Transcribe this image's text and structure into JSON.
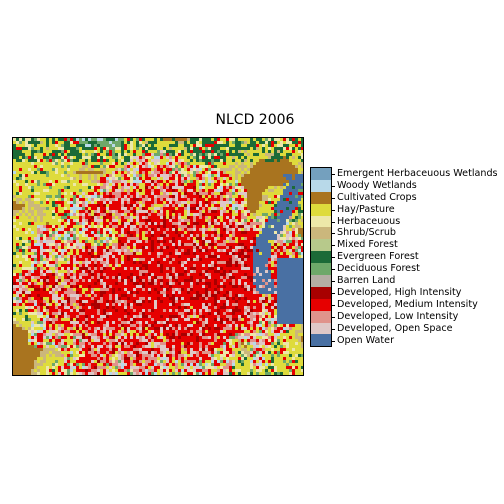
{
  "map": {
    "title": "NLCD 2006",
    "legend": [
      {
        "label": "Emergent Herbaceuous Wetlands",
        "color": "#74a0be"
      },
      {
        "label": "Woody Wetlands",
        "color": "#b8d9e9"
      },
      {
        "label": "Cultivated Crops",
        "color": "#a9741f"
      },
      {
        "label": "Hay/Pasture",
        "color": "#dedb3c"
      },
      {
        "label": "Herbaceuous",
        "color": "#ede8a9"
      },
      {
        "label": "Shrub/Scrub",
        "color": "#cbb77c"
      },
      {
        "label": "Mixed Forest",
        "color": "#b7c98b"
      },
      {
        "label": "Evergreen Forest",
        "color": "#1c6a37"
      },
      {
        "label": "Deciduous Forest",
        "color": "#6ea869"
      },
      {
        "label": "Barren Land",
        "color": "#b4ada3"
      },
      {
        "label": "Developed, High Intensity",
        "color": "#a80000"
      },
      {
        "label": "Developed, Medium Intensity",
        "color": "#e60000"
      },
      {
        "label": "Developed, Low Intensity",
        "color": "#e0938b"
      },
      {
        "label": "Developed, Open Space",
        "color": "#dfc8c7"
      },
      {
        "label": "Open Water",
        "color": "#4970a3"
      }
    ]
  }
}
